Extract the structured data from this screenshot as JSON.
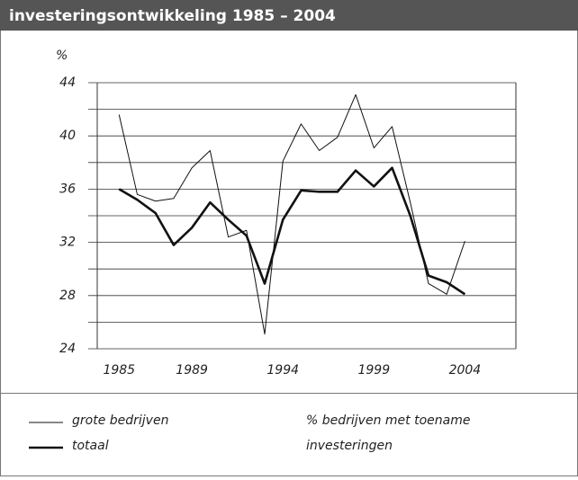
{
  "chart_data": {
    "type": "line",
    "title": "investeringsontwikkeling 1985 – 2004",
    "y_label": "%",
    "x": [
      1985,
      1986,
      1987,
      1988,
      1989,
      1990,
      1991,
      1992,
      1993,
      1994,
      1995,
      1996,
      1997,
      1998,
      1999,
      2000,
      2001,
      2002,
      2003,
      2004
    ],
    "series": [
      {
        "name": "grote bedrijven",
        "color": "#111111",
        "width": 1,
        "values": [
          41.6,
          35.6,
          35.1,
          35.3,
          37.6,
          38.9,
          32.4,
          32.9,
          25.1,
          38.1,
          40.9,
          38.9,
          39.9,
          43.1,
          39.1,
          40.7,
          35.0,
          28.9,
          28.1,
          32.1
        ]
      },
      {
        "name": "totaal",
        "color": "#111111",
        "width": 2.6,
        "values": [
          36.0,
          35.2,
          34.2,
          31.8,
          33.1,
          35.0,
          33.7,
          32.5,
          28.9,
          33.7,
          35.9,
          35.8,
          35.8,
          37.4,
          36.2,
          37.6,
          34.0,
          29.5,
          29.0,
          28.1
        ]
      }
    ],
    "xlim": [
      1983.8,
      2006.8
    ],
    "xticks": [
      1985,
      1989,
      1994,
      1999,
      2004
    ],
    "ylim": [
      24,
      44
    ],
    "yticks": [
      24,
      28,
      32,
      36,
      40,
      44
    ],
    "yminor": [
      26,
      30,
      34,
      38,
      42
    ],
    "grid": true,
    "note": [
      "% bedrijven met toename",
      "investeringen"
    ]
  }
}
